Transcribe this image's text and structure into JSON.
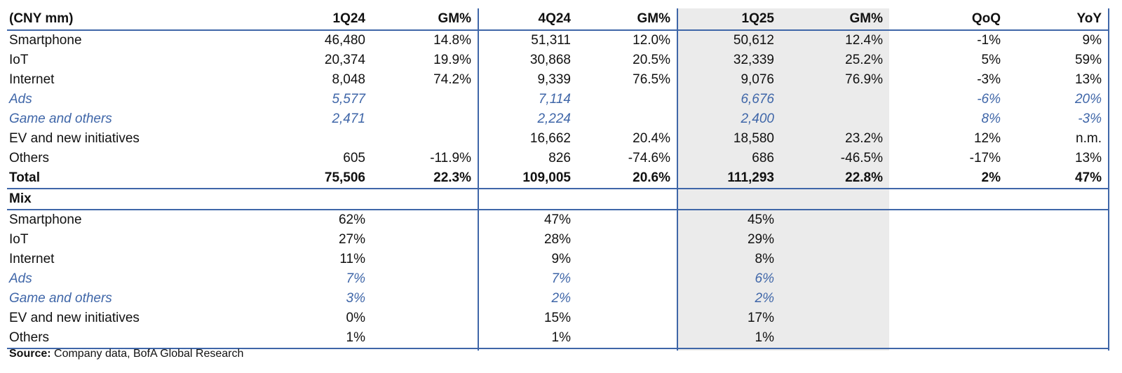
{
  "header": {
    "unit_label": "(CNY mm)",
    "columns": [
      "1Q24",
      "GM%",
      "4Q24",
      "GM%",
      "1Q25",
      "GM%",
      "QoQ",
      "YoY"
    ]
  },
  "revenue_rows": [
    {
      "label": "Smartphone",
      "values": [
        "46,480",
        "14.8%",
        "51,311",
        "12.0%",
        "50,612",
        "12.4%",
        "-1%",
        "9%"
      ],
      "sub": false
    },
    {
      "label": "IoT",
      "values": [
        "20,374",
        "19.9%",
        "30,868",
        "20.5%",
        "32,339",
        "25.2%",
        "5%",
        "59%"
      ],
      "sub": false
    },
    {
      "label": "Internet",
      "values": [
        "8,048",
        "74.2%",
        "9,339",
        "76.5%",
        "9,076",
        "76.9%",
        "-3%",
        "13%"
      ],
      "sub": false
    },
    {
      "label": "Ads",
      "values": [
        "5,577",
        "",
        "7,114",
        "",
        "6,676",
        "",
        "-6%",
        "20%"
      ],
      "sub": true
    },
    {
      "label": "Game and others",
      "values": [
        "2,471",
        "",
        "2,224",
        "",
        "2,400",
        "",
        "8%",
        "-3%"
      ],
      "sub": true
    },
    {
      "label": "EV and new initiatives",
      "values": [
        "",
        "",
        "16,662",
        "20.4%",
        "18,580",
        "23.2%",
        "12%",
        "n.m."
      ],
      "sub": false
    },
    {
      "label": "Others",
      "values": [
        "605",
        "-11.9%",
        "826",
        "-74.6%",
        "686",
        "-46.5%",
        "-17%",
        "13%"
      ],
      "sub": false
    }
  ],
  "total_row": {
    "label": "Total",
    "values": [
      "75,506",
      "22.3%",
      "109,005",
      "20.6%",
      "111,293",
      "22.8%",
      "2%",
      "47%"
    ]
  },
  "mix_label": "Mix",
  "mix_rows": [
    {
      "label": "Smartphone",
      "values": [
        "62%",
        "",
        "47%",
        "",
        "45%",
        "",
        "",
        ""
      ],
      "sub": false
    },
    {
      "label": "IoT",
      "values": [
        "27%",
        "",
        "28%",
        "",
        "29%",
        "",
        "",
        ""
      ],
      "sub": false
    },
    {
      "label": "Internet",
      "values": [
        "11%",
        "",
        "9%",
        "",
        "8%",
        "",
        "",
        ""
      ],
      "sub": false
    },
    {
      "label": "Ads",
      "values": [
        "7%",
        "",
        "7%",
        "",
        "6%",
        "",
        "",
        ""
      ],
      "sub": true
    },
    {
      "label": "Game and others",
      "values": [
        "3%",
        "",
        "2%",
        "",
        "2%",
        "",
        "",
        ""
      ],
      "sub": true
    },
    {
      "label": "EV and new initiatives",
      "values": [
        "0%",
        "",
        "15%",
        "",
        "17%",
        "",
        "",
        ""
      ],
      "sub": false
    },
    {
      "label": "Others",
      "values": [
        "1%",
        "",
        "1%",
        "",
        "1%",
        "",
        "",
        ""
      ],
      "sub": false
    }
  ],
  "source": {
    "label": "Source:",
    "text": " Company data, BofA Global Research"
  },
  "colors": {
    "accent": "#3f66a8",
    "band": "#ebebeb"
  }
}
